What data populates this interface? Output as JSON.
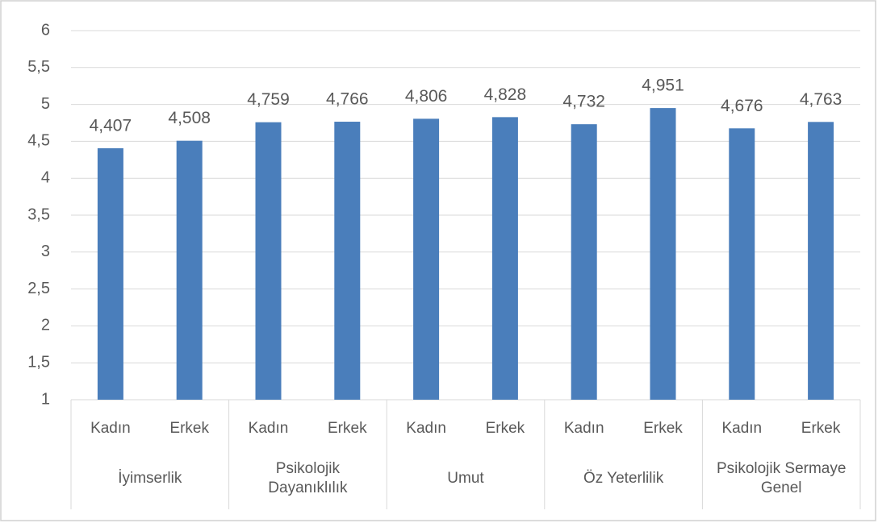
{
  "chart_data": {
    "type": "bar",
    "categories": [
      "Kadın",
      "Erkek",
      "Kadın",
      "Erkek",
      "Kadın",
      "Erkek",
      "Kadın",
      "Erkek",
      "Kadın",
      "Erkek"
    ],
    "groups": [
      "İyimserlik",
      "Psikolojik Dayanıklılık",
      "Umut",
      "Öz Yeterlilik",
      "Psikolojik Sermaye Genel"
    ],
    "values": [
      4.407,
      4.508,
      4.759,
      4.766,
      4.806,
      4.828,
      4.732,
      4.951,
      4.676,
      4.763
    ],
    "value_labels": [
      "4,407",
      "4,508",
      "4,759",
      "4,766",
      "4,806",
      "4,828",
      "4,732",
      "4,951",
      "4,676",
      "4,763"
    ],
    "color": "#4a7ebb",
    "ylim": [
      1,
      6
    ],
    "yticks": [
      1,
      {
        "value": 1.5,
        "label": "1,5"
      },
      2,
      {
        "value": 2.5,
        "label": "2,5"
      },
      3,
      {
        "value": 3.5,
        "label": "3,5"
      },
      4,
      {
        "value": 4.5,
        "label": "4,5"
      },
      5,
      {
        "value": 5.5,
        "label": "5,5"
      },
      6
    ],
    "grid": true
  }
}
